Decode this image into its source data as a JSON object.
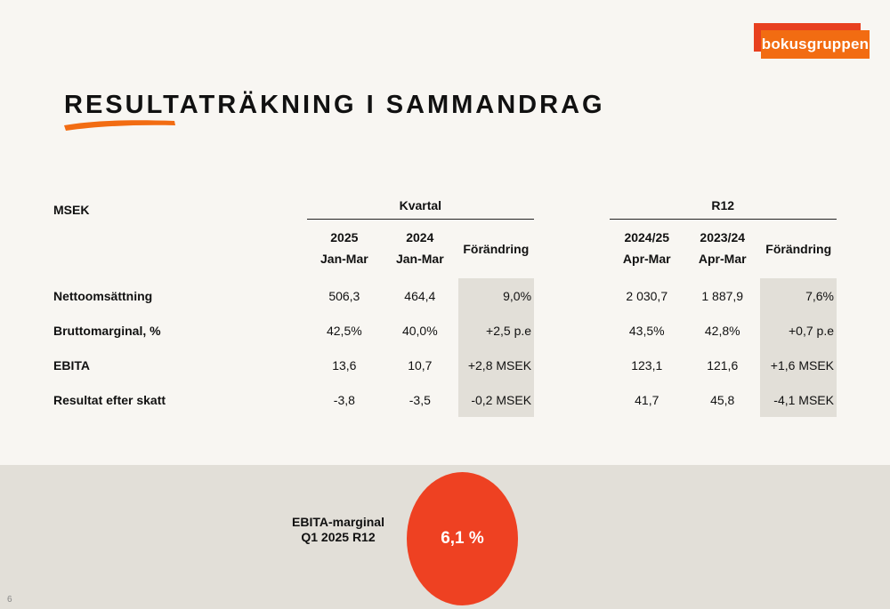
{
  "brand": {
    "logo_text": "bokusgruppen",
    "primary_color": "#ee4122",
    "accent_color": "#f26c12",
    "band_color": "#e2dfd8"
  },
  "title": "RESULTATRÄKNING I SAMMANDRAG",
  "table": {
    "row_header": "MSEK",
    "groups": [
      "Kvartal",
      "R12"
    ],
    "columns": [
      {
        "year": "2025",
        "period": "Jan-Mar"
      },
      {
        "year": "2024",
        "period": "Jan-Mar"
      },
      {
        "change": "Förändring"
      },
      {
        "year": "2024/25",
        "period": "Apr-Mar"
      },
      {
        "year": "2023/24",
        "period": "Apr-Mar"
      },
      {
        "change": "Förändring"
      }
    ],
    "rows": [
      {
        "label": "Nettoomsättning",
        "values": [
          "506,3",
          "464,4",
          "9,0%",
          "2 030,7",
          "1 887,9",
          "7,6%"
        ]
      },
      {
        "label": "Bruttomarginal, %",
        "values": [
          "42,5%",
          "40,0%",
          "+2,5 p.e",
          "43,5%",
          "42,8%",
          "+0,7 p.e"
        ]
      },
      {
        "label": "EBITA",
        "values": [
          "13,6",
          "10,7",
          "+2,8 MSEK",
          "123,1",
          "121,6",
          "+1,6 MSEK"
        ]
      },
      {
        "label": "Resultat efter skatt",
        "values": [
          "-3,8",
          "-3,5",
          "-0,2 MSEK",
          "41,7",
          "45,8",
          "-4,1 MSEK"
        ]
      }
    ]
  },
  "highlight": {
    "label_line1": "EBITA-marginal",
    "label_line2": "Q1 2025 R12",
    "value": "6,1 %"
  },
  "page_number": "6"
}
